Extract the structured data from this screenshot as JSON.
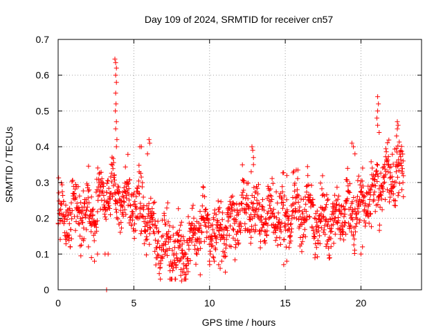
{
  "chart_data": {
    "type": "scatter",
    "title": "Day 109 of 2024, SRMTID for receiver cn57",
    "xlabel": "GPS time / hours",
    "ylabel": "SRMTID / TECUs",
    "xlim": [
      0,
      24
    ],
    "ylim": [
      0,
      0.7
    ],
    "x_ticks": [
      0,
      5,
      10,
      15,
      20
    ],
    "y_ticks": [
      0,
      0.1,
      0.2,
      0.3,
      0.4,
      0.5,
      0.6,
      0.7
    ],
    "x_tick_labels": [
      "0",
      "5",
      "10",
      "15",
      "20"
    ],
    "y_tick_labels": [
      "0",
      "0.1",
      "0.2",
      "0.3",
      "0.4",
      "0.5",
      "0.6",
      "0.7"
    ],
    "grid": true,
    "marker": "plus",
    "color": "#ff0000",
    "trend": [
      {
        "x": 0.0,
        "y": 0.21
      },
      {
        "x": 0.5,
        "y": 0.19
      },
      {
        "x": 1.0,
        "y": 0.22
      },
      {
        "x": 1.5,
        "y": 0.21
      },
      {
        "x": 2.0,
        "y": 0.2
      },
      {
        "x": 2.5,
        "y": 0.22
      },
      {
        "x": 3.0,
        "y": 0.27
      },
      {
        "x": 3.5,
        "y": 0.28
      },
      {
        "x": 4.0,
        "y": 0.26
      },
      {
        "x": 4.5,
        "y": 0.25
      },
      {
        "x": 5.0,
        "y": 0.24
      },
      {
        "x": 5.5,
        "y": 0.22
      },
      {
        "x": 6.0,
        "y": 0.19
      },
      {
        "x": 6.5,
        "y": 0.15
      },
      {
        "x": 7.0,
        "y": 0.13
      },
      {
        "x": 7.5,
        "y": 0.11
      },
      {
        "x": 8.0,
        "y": 0.1
      },
      {
        "x": 8.5,
        "y": 0.12
      },
      {
        "x": 9.0,
        "y": 0.16
      },
      {
        "x": 9.5,
        "y": 0.18
      },
      {
        "x": 10.0,
        "y": 0.17
      },
      {
        "x": 10.5,
        "y": 0.15
      },
      {
        "x": 11.0,
        "y": 0.17
      },
      {
        "x": 11.5,
        "y": 0.19
      },
      {
        "x": 12.0,
        "y": 0.21
      },
      {
        "x": 12.5,
        "y": 0.23
      },
      {
        "x": 13.0,
        "y": 0.22
      },
      {
        "x": 13.5,
        "y": 0.21
      },
      {
        "x": 14.0,
        "y": 0.2
      },
      {
        "x": 14.5,
        "y": 0.2
      },
      {
        "x": 15.0,
        "y": 0.21
      },
      {
        "x": 15.5,
        "y": 0.22
      },
      {
        "x": 16.0,
        "y": 0.22
      },
      {
        "x": 16.5,
        "y": 0.22
      },
      {
        "x": 17.0,
        "y": 0.21
      },
      {
        "x": 17.5,
        "y": 0.2
      },
      {
        "x": 18.0,
        "y": 0.2
      },
      {
        "x": 18.5,
        "y": 0.21
      },
      {
        "x": 19.0,
        "y": 0.22
      },
      {
        "x": 19.5,
        "y": 0.22
      },
      {
        "x": 20.0,
        "y": 0.23
      },
      {
        "x": 20.5,
        "y": 0.25
      },
      {
        "x": 21.0,
        "y": 0.27
      },
      {
        "x": 21.5,
        "y": 0.3
      },
      {
        "x": 22.0,
        "y": 0.33
      },
      {
        "x": 22.5,
        "y": 0.33
      },
      {
        "x": 22.8,
        "y": 0.3
      }
    ],
    "spread": 0.05,
    "x_end": 22.8,
    "point_count": 1500,
    "notable_points": [
      {
        "x": 3.75,
        "y": 0.645
      },
      {
        "x": 3.8,
        "y": 0.635
      },
      {
        "x": 3.85,
        "y": 0.62
      },
      {
        "x": 3.8,
        "y": 0.6
      },
      {
        "x": 3.85,
        "y": 0.58
      },
      {
        "x": 3.8,
        "y": 0.55
      },
      {
        "x": 3.82,
        "y": 0.52
      },
      {
        "x": 3.78,
        "y": 0.5
      },
      {
        "x": 3.85,
        "y": 0.47
      },
      {
        "x": 3.8,
        "y": 0.45
      },
      {
        "x": 3.88,
        "y": 0.42
      },
      {
        "x": 3.85,
        "y": 0.4
      },
      {
        "x": 3.2,
        "y": 0.0
      },
      {
        "x": 3.1,
        "y": 0.1
      },
      {
        "x": 3.3,
        "y": 0.1
      },
      {
        "x": 2.4,
        "y": 0.08
      },
      {
        "x": 2.2,
        "y": 0.09
      },
      {
        "x": 1.5,
        "y": 0.095
      },
      {
        "x": 2.0,
        "y": 0.12
      },
      {
        "x": 2.6,
        "y": 0.1
      },
      {
        "x": 5.4,
        "y": 0.4
      },
      {
        "x": 5.5,
        "y": 0.4
      },
      {
        "x": 6.0,
        "y": 0.42
      },
      {
        "x": 6.05,
        "y": 0.41
      },
      {
        "x": 5.9,
        "y": 0.38
      },
      {
        "x": 8.15,
        "y": 0.025
      },
      {
        "x": 8.1,
        "y": 0.04
      },
      {
        "x": 8.2,
        "y": 0.05
      },
      {
        "x": 7.8,
        "y": 0.07
      },
      {
        "x": 8.3,
        "y": 0.06
      },
      {
        "x": 12.8,
        "y": 0.4
      },
      {
        "x": 12.85,
        "y": 0.39
      },
      {
        "x": 12.9,
        "y": 0.37
      },
      {
        "x": 12.9,
        "y": 0.35
      },
      {
        "x": 12.75,
        "y": 0.33
      },
      {
        "x": 10.7,
        "y": 0.06
      },
      {
        "x": 10.6,
        "y": 0.07
      },
      {
        "x": 10.8,
        "y": 0.08
      },
      {
        "x": 14.9,
        "y": 0.07
      },
      {
        "x": 15.1,
        "y": 0.08
      },
      {
        "x": 21.1,
        "y": 0.54
      },
      {
        "x": 21.15,
        "y": 0.52
      },
      {
        "x": 21.1,
        "y": 0.5
      },
      {
        "x": 21.05,
        "y": 0.48
      },
      {
        "x": 21.1,
        "y": 0.46
      },
      {
        "x": 21.2,
        "y": 0.44
      },
      {
        "x": 22.4,
        "y": 0.47
      },
      {
        "x": 22.45,
        "y": 0.46
      },
      {
        "x": 22.4,
        "y": 0.45
      },
      {
        "x": 22.35,
        "y": 0.43
      },
      {
        "x": 19.4,
        "y": 0.41
      },
      {
        "x": 19.5,
        "y": 0.4
      },
      {
        "x": 19.6,
        "y": 0.38
      },
      {
        "x": 20.0,
        "y": 0.1
      },
      {
        "x": 20.1,
        "y": 0.12
      },
      {
        "x": 18.2,
        "y": 0.13
      },
      {
        "x": 22.8,
        "y": 0.26
      },
      {
        "x": 22.7,
        "y": 0.28
      }
    ]
  }
}
